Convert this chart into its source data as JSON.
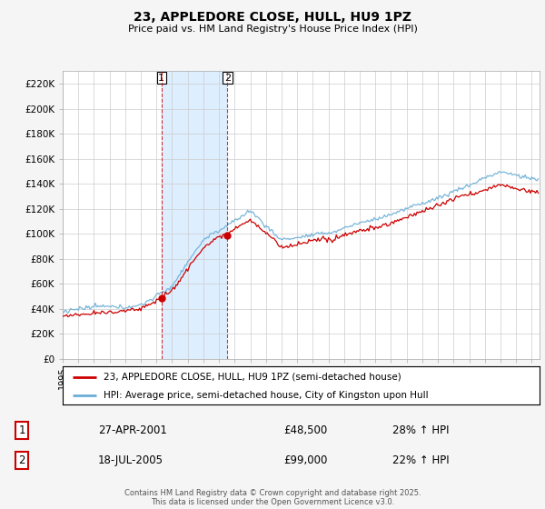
{
  "title": "23, APPLEDORE CLOSE, HULL, HU9 1PZ",
  "subtitle": "Price paid vs. HM Land Registry's House Price Index (HPI)",
  "legend_line1": "23, APPLEDORE CLOSE, HULL, HU9 1PZ (semi-detached house)",
  "legend_line2": "HPI: Average price, semi-detached house, City of Kingston upon Hull",
  "footer": "Contains HM Land Registry data © Crown copyright and database right 2025.\nThis data is licensed under the Open Government Licence v3.0.",
  "sale1_date": "27-APR-2001",
  "sale1_price": "£48,500",
  "sale1_hpi": "28% ↑ HPI",
  "sale2_date": "18-JUL-2005",
  "sale2_price": "£99,000",
  "sale2_hpi": "22% ↑ HPI",
  "sale1_x": 2001.32,
  "sale1_y": 48500,
  "sale2_x": 2005.54,
  "sale2_y": 99000,
  "ylim": [
    0,
    230000
  ],
  "xlim": [
    1995.0,
    2025.5
  ],
  "yticks": [
    0,
    20000,
    40000,
    60000,
    80000,
    100000,
    120000,
    140000,
    160000,
    180000,
    200000,
    220000
  ],
  "ytick_labels": [
    "£0",
    "£20K",
    "£40K",
    "£60K",
    "£80K",
    "£100K",
    "£120K",
    "£140K",
    "£160K",
    "£180K",
    "£200K",
    "£220K"
  ],
  "hpi_color": "#6baed6",
  "price_color": "#cc0000",
  "shade_color": "#ddeeff",
  "background_color": "#f5f5f5",
  "plot_bg_color": "#ffffff",
  "grid_color": "#cccccc"
}
